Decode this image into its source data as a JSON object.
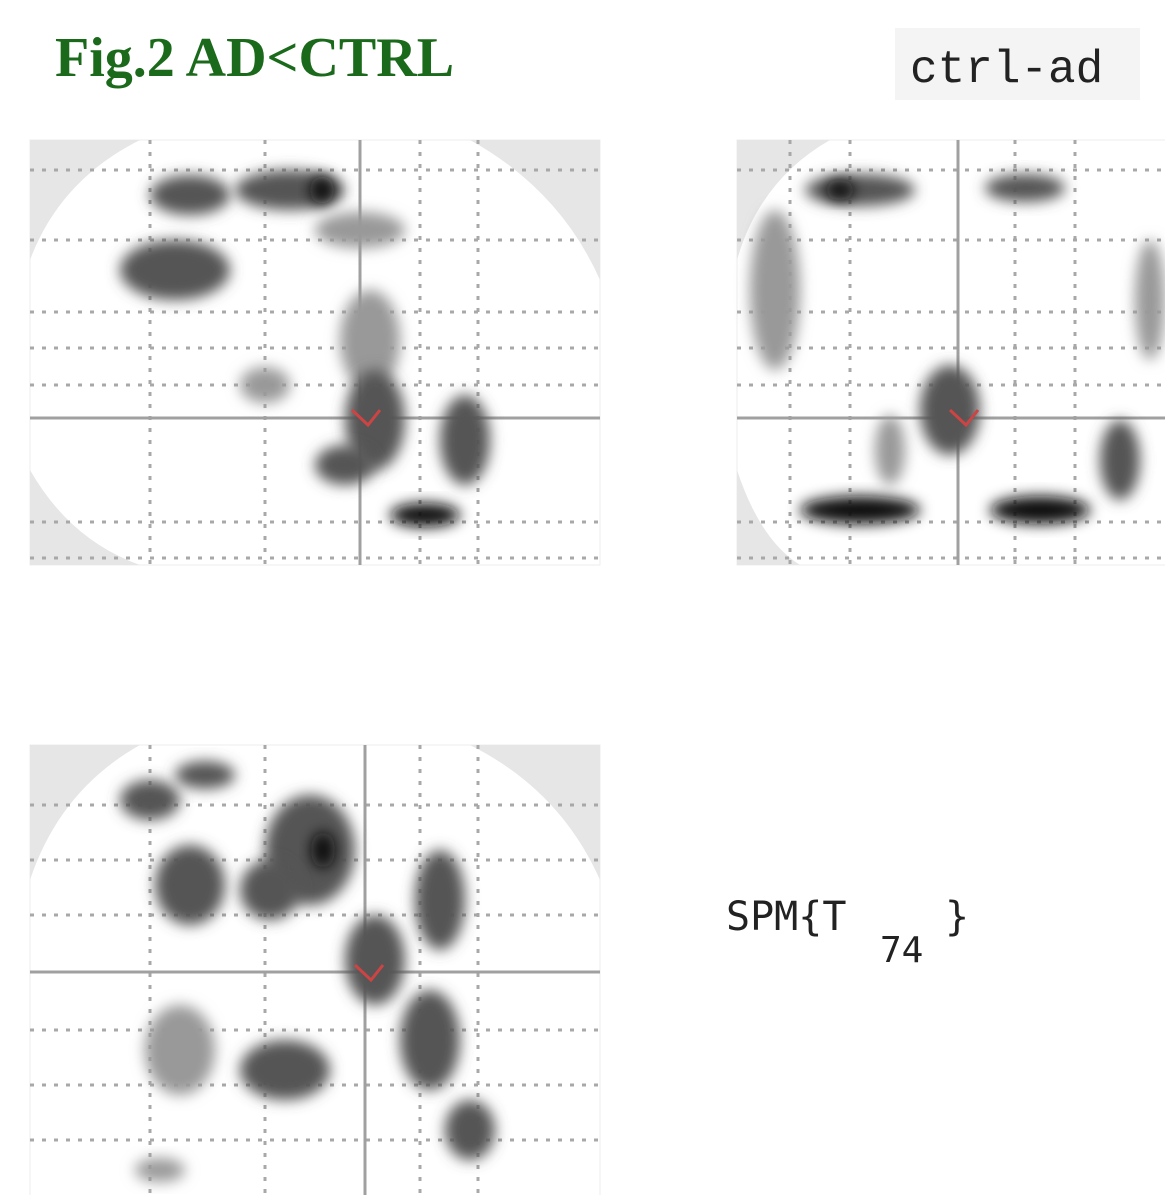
{
  "figure": {
    "title": "Fig.2 AD<CTRL",
    "contrast": "ctrl-ad",
    "statistic": {
      "main": "SPM{T",
      "subscript": "74",
      "close": "}"
    }
  }
}
